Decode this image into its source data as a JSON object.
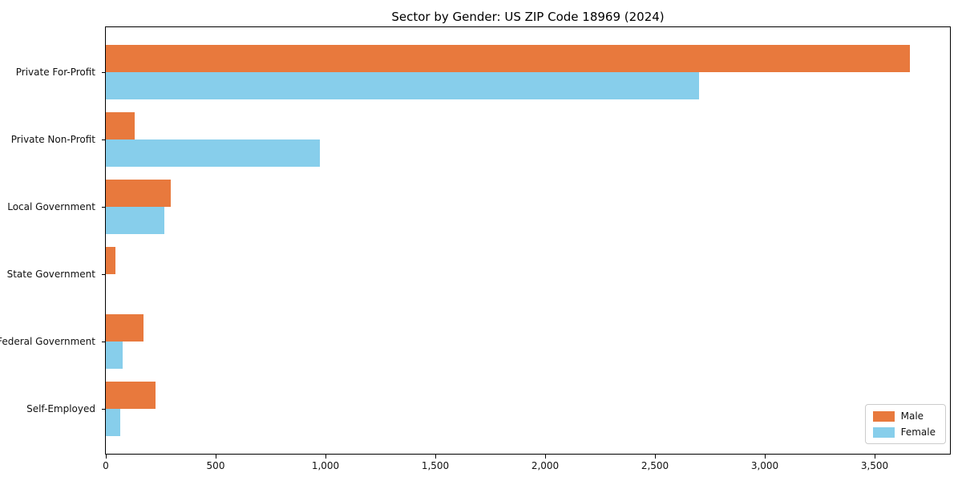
{
  "chart_data": {
    "type": "bar",
    "orientation": "horizontal",
    "title": "Sector by Gender: US ZIP Code 18969 (2024)",
    "categories": [
      "Private For-Profit",
      "Private Non-Profit",
      "Local Government",
      "State Government",
      "Federal Government",
      "Self-Employed"
    ],
    "series": [
      {
        "name": "Male",
        "color": "#e8793d",
        "values": [
          3660,
          130,
          295,
          45,
          170,
          225
        ]
      },
      {
        "name": "Female",
        "color": "#87ceeb",
        "values": [
          2700,
          975,
          265,
          0,
          75,
          65
        ]
      }
    ],
    "xlabel": "",
    "ylabel": "",
    "xlim": [
      0,
      3843
    ],
    "xticks": [
      0,
      500,
      1000,
      1500,
      2000,
      2500,
      3000,
      3500
    ],
    "xtick_labels": [
      "0",
      "500",
      "1,000",
      "1,500",
      "2,000",
      "2,500",
      "3,000",
      "3,500"
    ],
    "grid": false,
    "legend_position": "lower right",
    "frame": true,
    "background_color": "#ffffff"
  }
}
